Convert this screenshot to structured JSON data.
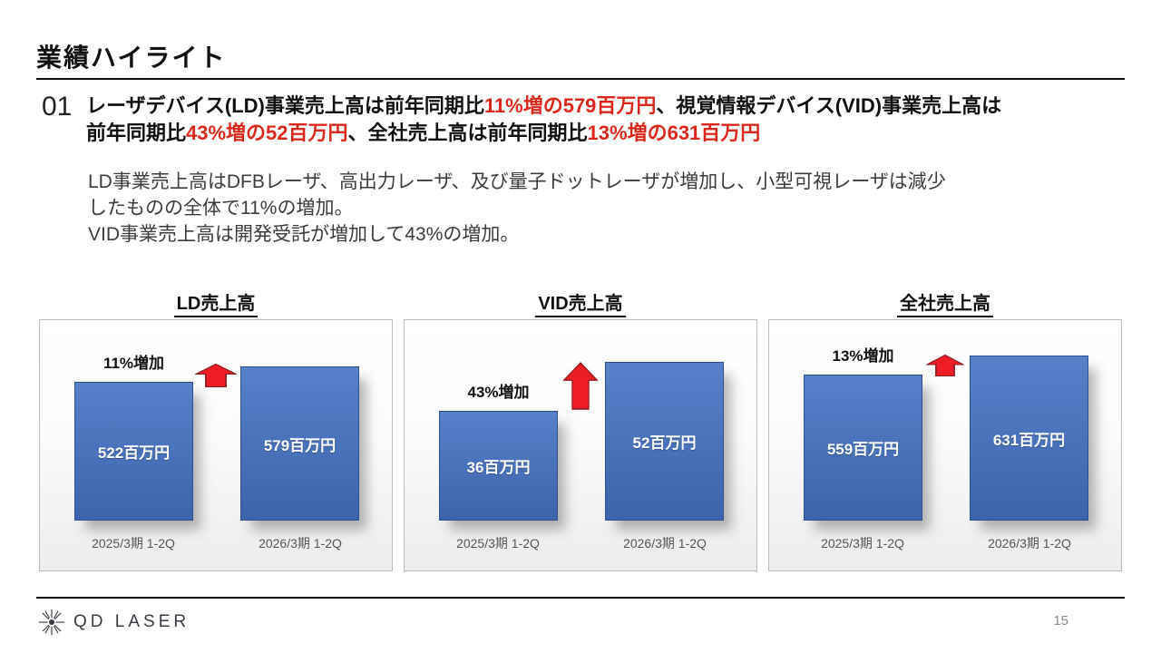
{
  "colors": {
    "accent_red": "#dc281c",
    "bar_blue": "#4472c4",
    "arrow_red": "#ee1c24"
  },
  "slide": {
    "title": "業績ハイライト",
    "section_number": "01",
    "page_number": "15"
  },
  "headline": {
    "segments": [
      {
        "text": "レーザデバイス(LD)事業売上高は前年同期比",
        "red": false
      },
      {
        "text": "11%増の579百万円",
        "red": true
      },
      {
        "text": "、視覚情報デバイス(VID)事業売上高は",
        "red": false
      },
      {
        "text": "前年同期比",
        "red": false
      },
      {
        "text": "43%増の52百万円",
        "red": true
      },
      {
        "text": "、全社売上高は前年同期比",
        "red": false
      },
      {
        "text": "13%増の631百万円",
        "red": true
      }
    ]
  },
  "body": {
    "lines": [
      "LD事業売上高はDFBレーザ、高出力レーザ、及び量子ドットレーザが増加し、小型可視レーザは減少",
      "したものの全体で11%の増加。",
      "VID事業売上高は開発受託が増加して43%の増加。"
    ]
  },
  "chart_data": [
    {
      "type": "bar",
      "title": "LD売上高",
      "categories": [
        "2025/3期 1-2Q",
        "2026/3期 1-2Q"
      ],
      "values": [
        522,
        579
      ],
      "value_labels": [
        "522百万円",
        "579百万円"
      ],
      "annotation": "11%増加",
      "unit": "百万円",
      "bar_color": "#4472c4",
      "arrow_color": "#ee1c24"
    },
    {
      "type": "bar",
      "title": "VID売上高",
      "categories": [
        "2025/3期 1-2Q",
        "2026/3期 1-2Q"
      ],
      "values": [
        36,
        52
      ],
      "value_labels": [
        "36百万円",
        "52百万円"
      ],
      "annotation": "43%増加",
      "unit": "百万円",
      "bar_color": "#4472c4",
      "arrow_color": "#ee1c24"
    },
    {
      "type": "bar",
      "title": "全社売上高",
      "categories": [
        "2025/3期 1-2Q",
        "2026/3期 1-2Q"
      ],
      "values": [
        559,
        631
      ],
      "value_labels": [
        "559百万円",
        "631百万円"
      ],
      "annotation": "13%増加",
      "unit": "百万円",
      "bar_color": "#4472c4",
      "arrow_color": "#ee1c24"
    }
  ],
  "footer": {
    "logo_text": "QD LASER"
  }
}
